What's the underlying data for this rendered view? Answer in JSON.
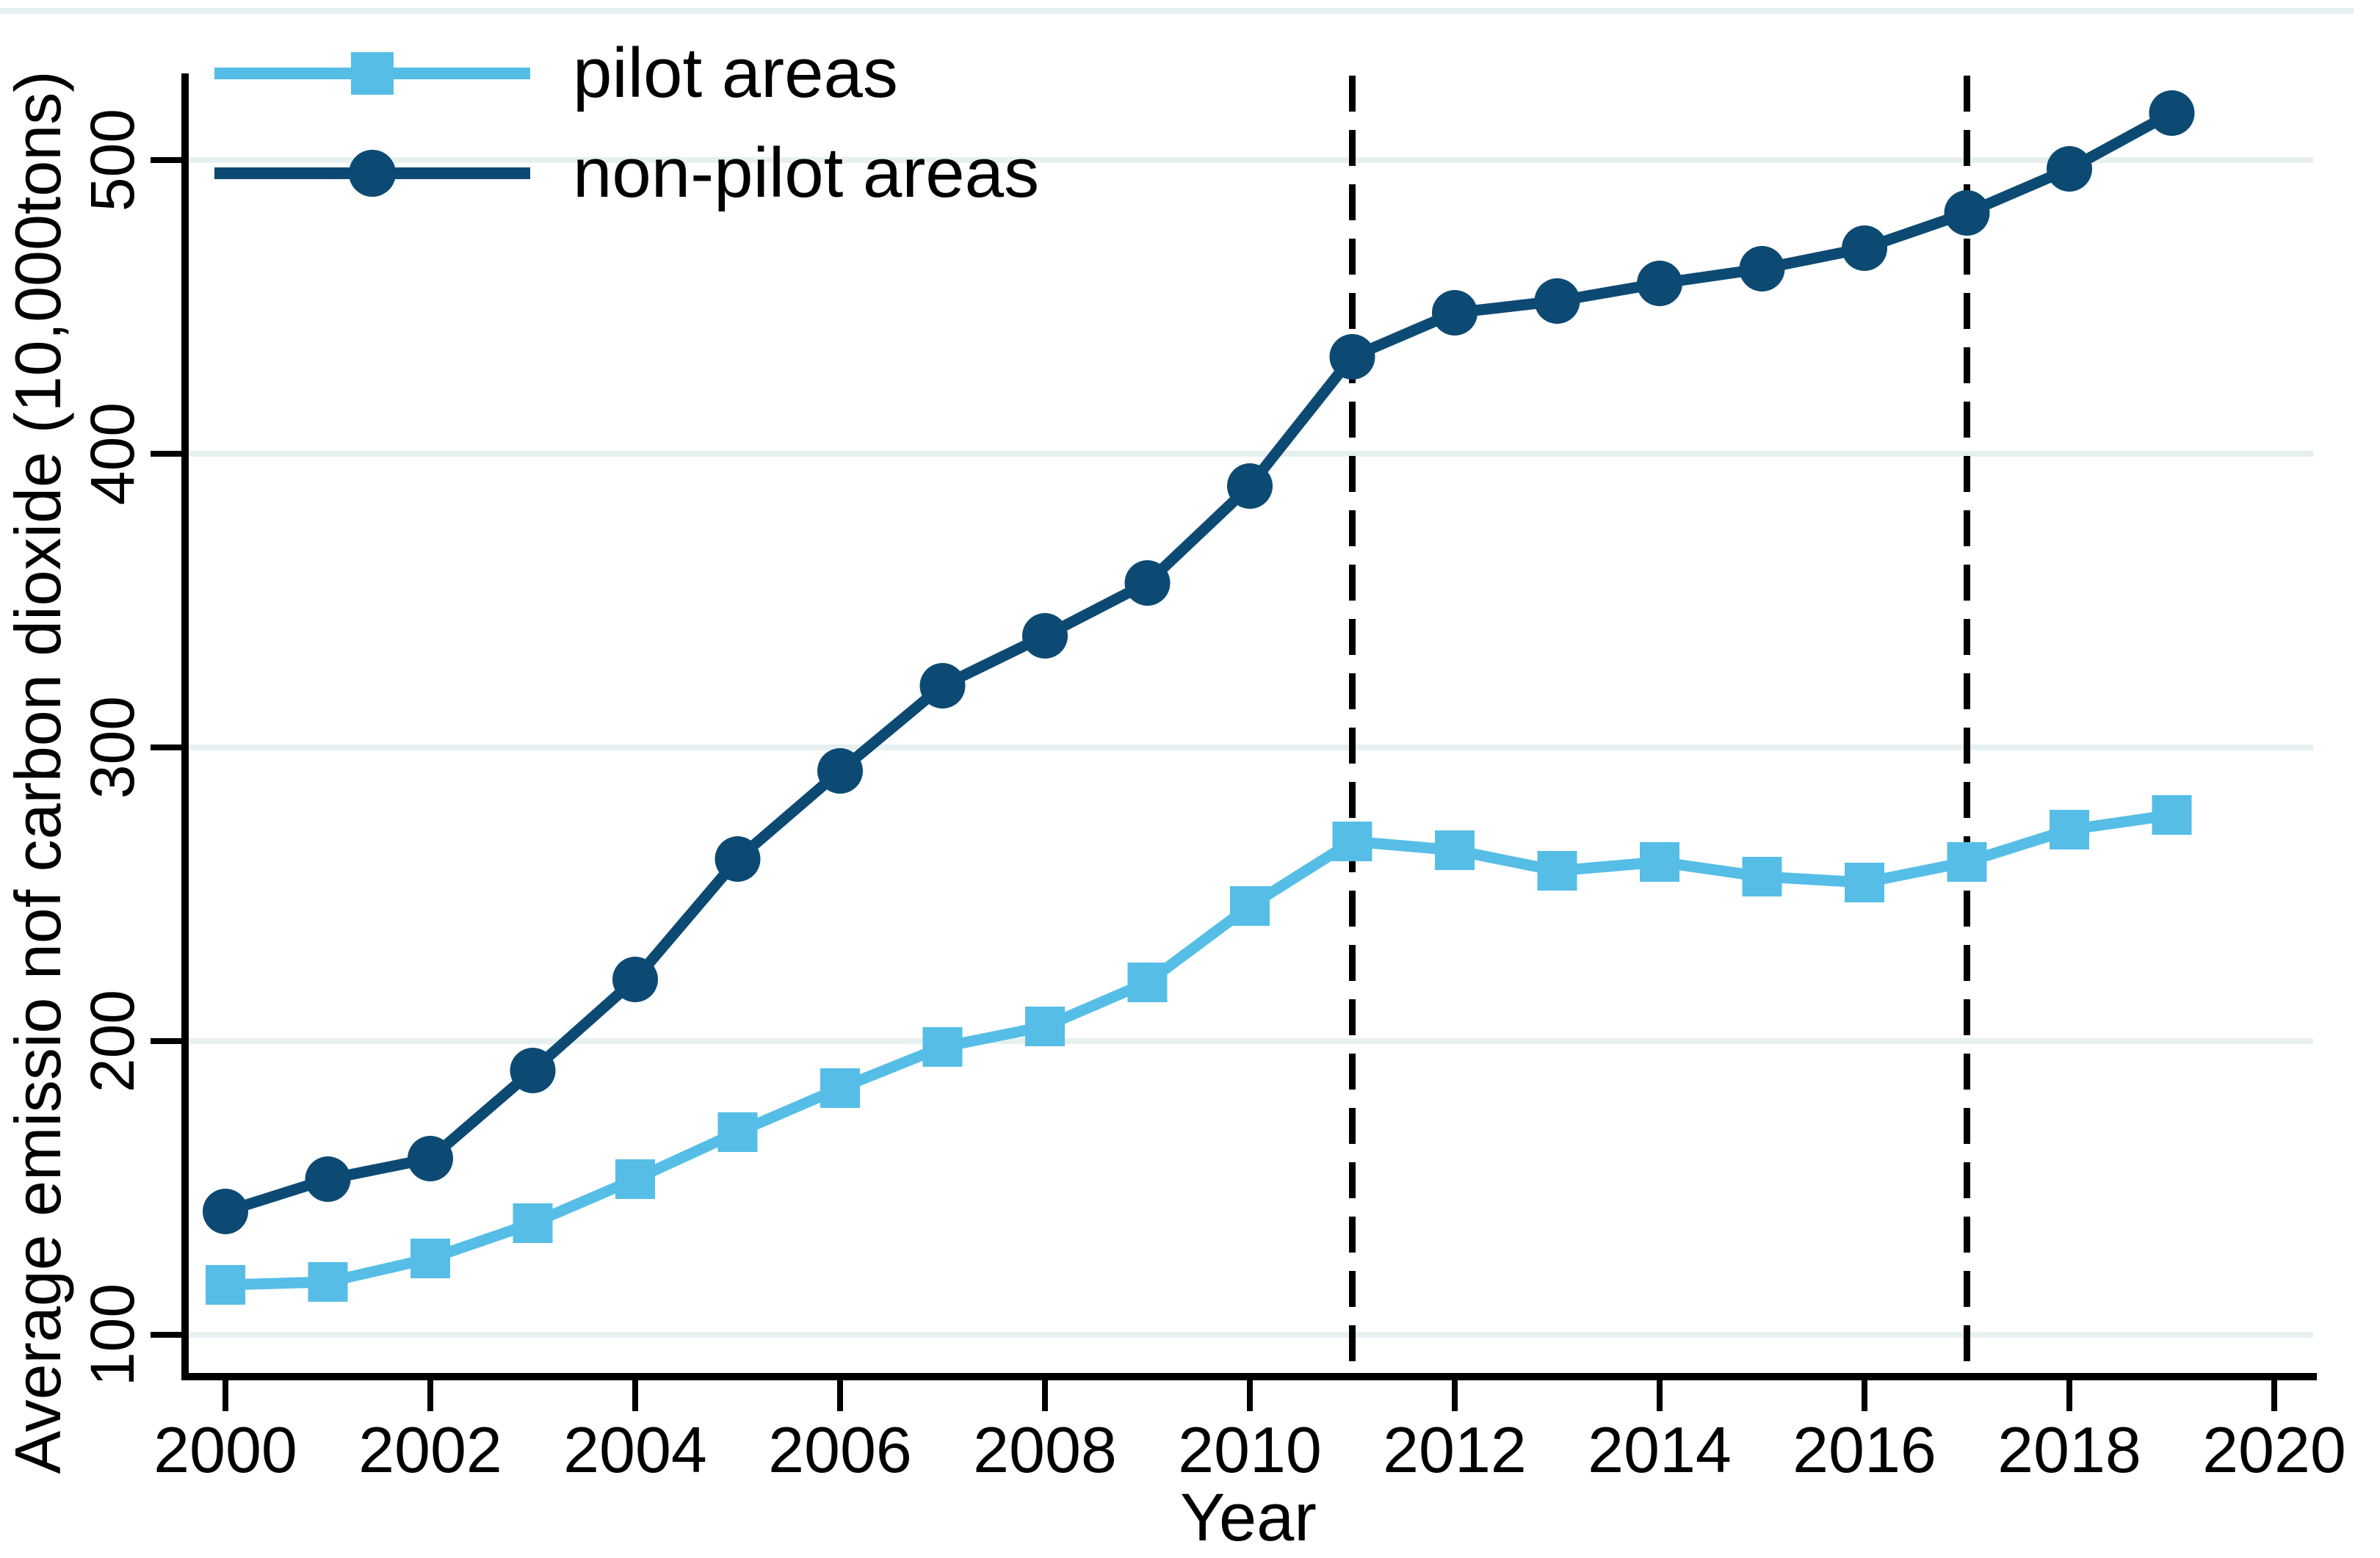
{
  "figure": {
    "background": "#ffffff",
    "top_border_color": "#e7f0f1"
  },
  "chart_data": {
    "type": "line",
    "title": "",
    "xlabel": "Year",
    "ylabel": "Average emissio nof carbon dioxide (10,000tons)",
    "x": [
      2000,
      2001,
      2002,
      2003,
      2004,
      2005,
      2006,
      2007,
      2008,
      2009,
      2010,
      2011,
      2012,
      2013,
      2014,
      2015,
      2016,
      2017,
      2018,
      2019
    ],
    "series": [
      {
        "name": "pilot areas",
        "marker": "square",
        "color": "#56bee6",
        "values": [
          117,
          118,
          126,
          138,
          153,
          169,
          184,
          198,
          205,
          220,
          246,
          268,
          265,
          258,
          261,
          256,
          254,
          261,
          272,
          277
        ]
      },
      {
        "name": "non-pilot areas",
        "marker": "circle",
        "color": "#0d4a73",
        "values": [
          142,
          153,
          160,
          190,
          221,
          262,
          292,
          321,
          338,
          356,
          389,
          433,
          448,
          452,
          458,
          463,
          470,
          482,
          497,
          516
        ]
      }
    ],
    "x_ticks": [
      2000,
      2002,
      2004,
      2006,
      2008,
      2010,
      2012,
      2014,
      2016,
      2018,
      2020
    ],
    "y_ticks": [
      100,
      200,
      300,
      400,
      500
    ],
    "xlim": [
      1999.6,
      2020.4
    ],
    "ylim": [
      86,
      530
    ],
    "grid": true,
    "gridline_color": "#e7f0f1",
    "axis_color": "#000000",
    "reference_lines_x": [
      2011,
      2017
    ],
    "reference_line_style": "dashed",
    "legend_position": "top-left"
  }
}
